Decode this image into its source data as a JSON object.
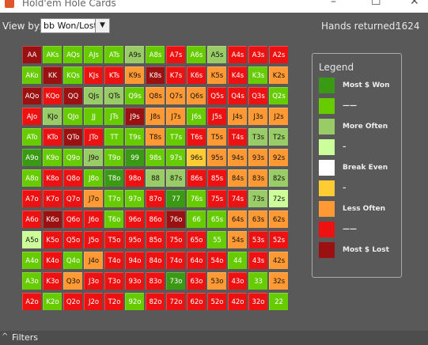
{
  "window": {
    "title": "Hold'em Hole Cards",
    "buttons": {
      "minimize": "–",
      "maximize": "☐",
      "close": "✕"
    }
  },
  "toolbar": {
    "view_by_label": "View by:",
    "view_by_value": "bb Won/Lost",
    "hands_returned_label": "Hands returned:",
    "hands_returned_value": "1624"
  },
  "colors": {
    "dark_green": "#3a9a14",
    "green": "#66cc00",
    "light_green": "#99cc66",
    "pale_green": "#ccff99",
    "white": "#ffffff",
    "yellow": "#ffcc33",
    "orange": "#ff9933",
    "red": "#ee1111",
    "dark_red": "#9b1111"
  },
  "legend": {
    "title": "Legend",
    "items": [
      {
        "label": "Most $ Won",
        "color": "#3a9a14"
      },
      {
        "label": "——",
        "color": "#66cc00"
      },
      {
        "label": "More Often",
        "color": "#99cc66"
      },
      {
        "label": "–",
        "color": "#ccff99"
      },
      {
        "label": "Break Even",
        "color": "#ffffff"
      },
      {
        "label": "–",
        "color": "#ffcc33"
      },
      {
        "label": "Less Often",
        "color": "#ff9933"
      },
      {
        "label": "——",
        "color": "#ee1111"
      },
      {
        "label": "Most $ Lost",
        "color": "#9b1111"
      }
    ]
  },
  "grid": {
    "rows": [
      [
        [
          "AA",
          "dr"
        ],
        [
          "AKs",
          "g"
        ],
        [
          "AQs",
          "g"
        ],
        [
          "AJs",
          "g"
        ],
        [
          "ATs",
          "g"
        ],
        [
          "A9s",
          "lg"
        ],
        [
          "A8s",
          "g"
        ],
        [
          "A7s",
          "r"
        ],
        [
          "A6s",
          "g"
        ],
        [
          "A5s",
          "lg"
        ],
        [
          "A4s",
          "r"
        ],
        [
          "A3s",
          "r"
        ],
        [
          "A2s",
          "r"
        ]
      ],
      [
        [
          "AKo",
          "g"
        ],
        [
          "KK",
          "dr"
        ],
        [
          "KQs",
          "g"
        ],
        [
          "KJs",
          "r"
        ],
        [
          "KTs",
          "r"
        ],
        [
          "K9s",
          "o"
        ],
        [
          "K8s",
          "dr"
        ],
        [
          "K7s",
          "r"
        ],
        [
          "K6s",
          "r"
        ],
        [
          "K5s",
          "o"
        ],
        [
          "K4s",
          "r"
        ],
        [
          "K3s",
          "g"
        ],
        [
          "K2s",
          "o"
        ]
      ],
      [
        [
          "AQo",
          "dr"
        ],
        [
          "KQo",
          "r"
        ],
        [
          "QQ",
          "dr"
        ],
        [
          "QJs",
          "lg"
        ],
        [
          "QTs",
          "lg"
        ],
        [
          "Q9s",
          "g"
        ],
        [
          "Q8s",
          "o"
        ],
        [
          "Q7s",
          "o"
        ],
        [
          "Q6s",
          "o"
        ],
        [
          "Q5s",
          "r"
        ],
        [
          "Q4s",
          "r"
        ],
        [
          "Q3s",
          "r"
        ],
        [
          "Q2s",
          "g"
        ]
      ],
      [
        [
          "AJo",
          "r"
        ],
        [
          "KJo",
          "lg"
        ],
        [
          "QJo",
          "g"
        ],
        [
          "JJ",
          "g"
        ],
        [
          "JTs",
          "g"
        ],
        [
          "J9s",
          "dr"
        ],
        [
          "J8s",
          "o"
        ],
        [
          "J7s",
          "o"
        ],
        [
          "J6s",
          "g"
        ],
        [
          "J5s",
          "r"
        ],
        [
          "J4s",
          "o"
        ],
        [
          "J3s",
          "o"
        ],
        [
          "J2s",
          "o"
        ]
      ],
      [
        [
          "ATo",
          "g"
        ],
        [
          "KTo",
          "r"
        ],
        [
          "QTo",
          "dr"
        ],
        [
          "JTo",
          "r"
        ],
        [
          "TT",
          "g"
        ],
        [
          "T9s",
          "g"
        ],
        [
          "T8s",
          "o"
        ],
        [
          "T7s",
          "g"
        ],
        [
          "T6s",
          "r"
        ],
        [
          "T5s",
          "o"
        ],
        [
          "T4s",
          "r"
        ],
        [
          "T3s",
          "lg"
        ],
        [
          "T2s",
          "lg"
        ]
      ],
      [
        [
          "A9o",
          "dg"
        ],
        [
          "K9o",
          "g"
        ],
        [
          "Q9o",
          "g"
        ],
        [
          "J9o",
          "lg"
        ],
        [
          "T9o",
          "g"
        ],
        [
          "99",
          "dg"
        ],
        [
          "98s",
          "g"
        ],
        [
          "97s",
          "g"
        ],
        [
          "96s",
          "y"
        ],
        [
          "95s",
          "o"
        ],
        [
          "94s",
          "o"
        ],
        [
          "93s",
          "o"
        ],
        [
          "92s",
          "o"
        ]
      ],
      [
        [
          "A8o",
          "g"
        ],
        [
          "K8o",
          "r"
        ],
        [
          "Q8o",
          "r"
        ],
        [
          "J8o",
          "g"
        ],
        [
          "T8o",
          "dg"
        ],
        [
          "98o",
          "r"
        ],
        [
          "88",
          "lg"
        ],
        [
          "87s",
          "lg"
        ],
        [
          "86s",
          "r"
        ],
        [
          "85s",
          "r"
        ],
        [
          "84s",
          "o"
        ],
        [
          "83s",
          "o"
        ],
        [
          "82s",
          "lg"
        ]
      ],
      [
        [
          "A7o",
          "r"
        ],
        [
          "K7o",
          "r"
        ],
        [
          "Q7o",
          "r"
        ],
        [
          "J7o",
          "o"
        ],
        [
          "T7o",
          "g"
        ],
        [
          "97o",
          "g"
        ],
        [
          "87o",
          "r"
        ],
        [
          "77",
          "dg"
        ],
        [
          "76s",
          "g"
        ],
        [
          "75s",
          "r"
        ],
        [
          "74s",
          "r"
        ],
        [
          "73s",
          "lg"
        ],
        [
          "72s",
          "pg"
        ]
      ],
      [
        [
          "A6o",
          "r"
        ],
        [
          "K6o",
          "dr"
        ],
        [
          "Q6o",
          "r"
        ],
        [
          "J6o",
          "r"
        ],
        [
          "T6o",
          "g"
        ],
        [
          "96o",
          "r"
        ],
        [
          "86o",
          "r"
        ],
        [
          "76o",
          "dr"
        ],
        [
          "66",
          "g"
        ],
        [
          "65s",
          "g"
        ],
        [
          "64s",
          "o"
        ],
        [
          "63s",
          "o"
        ],
        [
          "62s",
          "o"
        ]
      ],
      [
        [
          "A5o",
          "pg"
        ],
        [
          "K5o",
          "r"
        ],
        [
          "Q5o",
          "r"
        ],
        [
          "J5o",
          "r"
        ],
        [
          "T5o",
          "r"
        ],
        [
          "95o",
          "r"
        ],
        [
          "85o",
          "r"
        ],
        [
          "75o",
          "r"
        ],
        [
          "65o",
          "r"
        ],
        [
          "55",
          "g"
        ],
        [
          "54s",
          "o"
        ],
        [
          "53s",
          "r"
        ],
        [
          "52s",
          "r"
        ]
      ],
      [
        [
          "A4o",
          "g"
        ],
        [
          "K4o",
          "r"
        ],
        [
          "Q4o",
          "g"
        ],
        [
          "J4o",
          "o"
        ],
        [
          "T4o",
          "r"
        ],
        [
          "94o",
          "r"
        ],
        [
          "84o",
          "r"
        ],
        [
          "74o",
          "r"
        ],
        [
          "64o",
          "r"
        ],
        [
          "54o",
          "r"
        ],
        [
          "44",
          "g"
        ],
        [
          "43s",
          "r"
        ],
        [
          "42s",
          "o"
        ]
      ],
      [
        [
          "A3o",
          "g"
        ],
        [
          "K3o",
          "r"
        ],
        [
          "Q3o",
          "o"
        ],
        [
          "J3o",
          "r"
        ],
        [
          "T3o",
          "r"
        ],
        [
          "93o",
          "r"
        ],
        [
          "83o",
          "r"
        ],
        [
          "73o",
          "dg"
        ],
        [
          "63o",
          "r"
        ],
        [
          "53o",
          "o"
        ],
        [
          "43o",
          "r"
        ],
        [
          "33",
          "g"
        ],
        [
          "32s",
          "o"
        ]
      ],
      [
        [
          "A2o",
          "r"
        ],
        [
          "K2o",
          "g"
        ],
        [
          "Q2o",
          "r"
        ],
        [
          "J2o",
          "r"
        ],
        [
          "T2o",
          "r"
        ],
        [
          "92o",
          "g"
        ],
        [
          "82o",
          "r"
        ],
        [
          "72o",
          "r"
        ],
        [
          "62o",
          "r"
        ],
        [
          "52o",
          "r"
        ],
        [
          "42o",
          "r"
        ],
        [
          "32o",
          "r"
        ],
        [
          "22",
          "g"
        ]
      ]
    ]
  },
  "filters": {
    "label": "Filters",
    "chevron": "^"
  }
}
